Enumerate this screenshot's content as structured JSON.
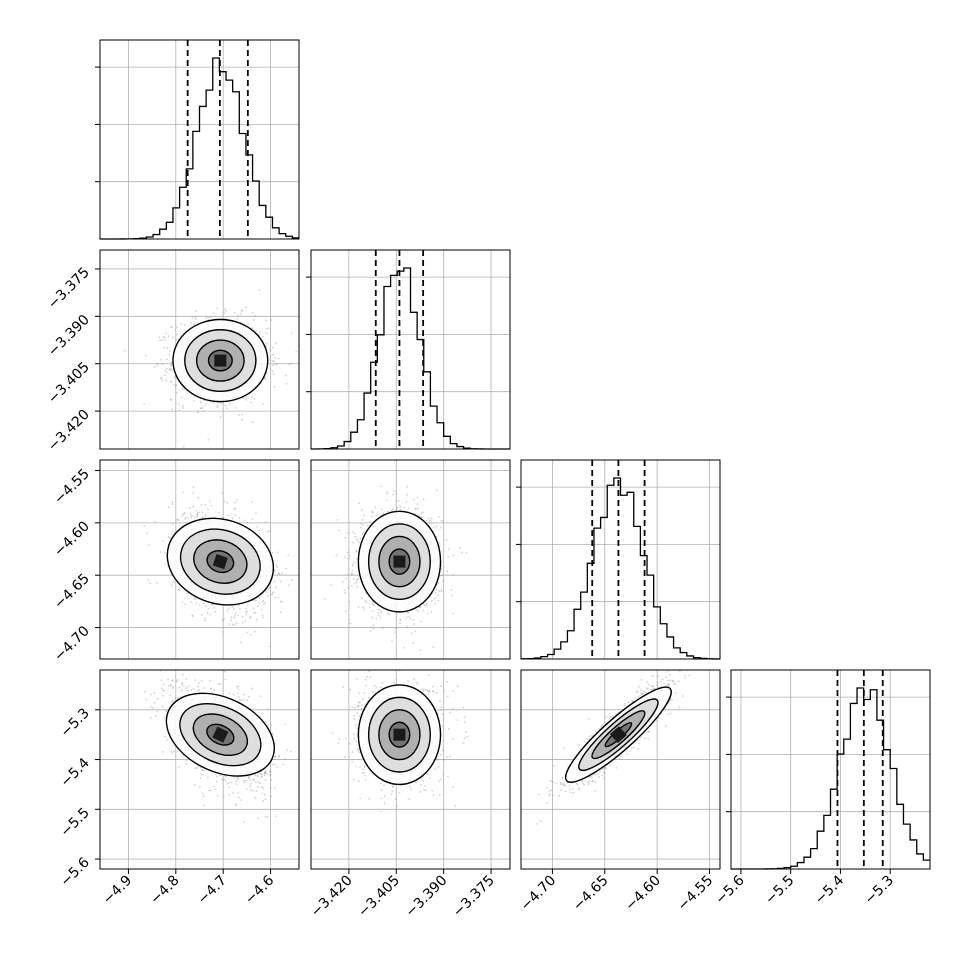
{
  "chart_data": {
    "type": "corner",
    "parameters": [
      {
        "ticks": [
          -4.9,
          -4.8,
          -4.7,
          -4.6
        ],
        "tick_labels": [
          "−4.9",
          "−4.8",
          "−4.7",
          "−4.6"
        ],
        "range": [
          -4.96,
          -4.54
        ],
        "mean": -4.706,
        "sigma": 0.05,
        "quantiles": [
          -4.775,
          -4.707,
          -4.648
        ]
      },
      {
        "ticks": [
          -3.42,
          -3.405,
          -3.39,
          -3.375
        ],
        "tick_labels": [
          "−3.420",
          "−3.405",
          "−3.390",
          "−3.375"
        ],
        "range": [
          -3.432,
          -3.369
        ],
        "mean": -3.404,
        "sigma": 0.0065,
        "quantiles": [
          -3.4115,
          -3.404,
          -3.3965
        ]
      },
      {
        "ticks": [
          -4.7,
          -4.65,
          -4.6,
          -4.55
        ],
        "tick_labels": [
          "−4.70",
          "−4.65",
          "−4.60",
          "−4.55"
        ],
        "range": [
          -4.73,
          -4.54
        ],
        "mean": -4.637,
        "sigma": 0.024,
        "quantiles": [
          -4.662,
          -4.637,
          -4.612
        ]
      },
      {
        "ticks": [
          -5.6,
          -5.5,
          -5.4,
          -5.3
        ],
        "tick_labels": [
          "−5.6",
          "−5.5",
          "−5.4",
          "−5.3"
        ],
        "range": [
          -5.62,
          -5.22
        ],
        "mean": -5.35,
        "sigma": 0.05,
        "quantiles": [
          -5.406,
          -5.353,
          -5.315
        ]
      }
    ],
    "diag_y_ticks": 4,
    "correlations": [
      {
        "pair": [
          0,
          1
        ],
        "rho": 0.0
      },
      {
        "pair": [
          0,
          2
        ],
        "rho": -0.3
      },
      {
        "pair": [
          1,
          2
        ],
        "rho": 0.0
      },
      {
        "pair": [
          0,
          3
        ],
        "rho": -0.45
      },
      {
        "pair": [
          1,
          3
        ],
        "rho": 0.0
      },
      {
        "pair": [
          2,
          3
        ],
        "rho": 0.9
      }
    ],
    "contour_sigma_levels": [
      0.5,
      1.0,
      1.5,
      2.0
    ],
    "grid": true,
    "colors": {
      "lines": "#000000",
      "points": "#9a9a9a",
      "grid": "#b0b0b0",
      "hist_shade": "#000000"
    }
  }
}
